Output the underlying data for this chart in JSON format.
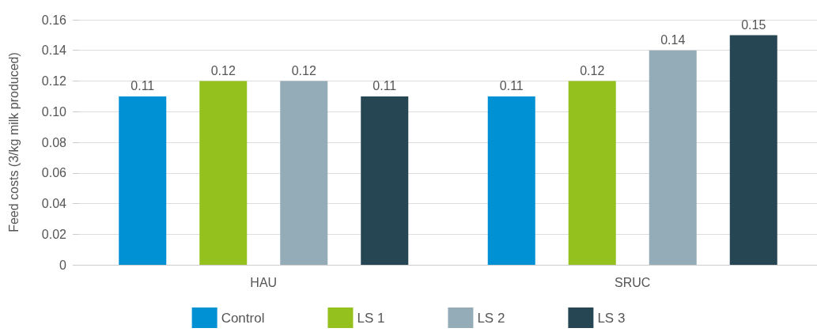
{
  "chart_data": {
    "type": "bar",
    "ylabel": "Feed costs (3/kg milk produced)",
    "categories": [
      "HAU",
      "SRUC"
    ],
    "series": [
      {
        "name": "Control",
        "color": "#0090d4",
        "values": [
          0.11,
          0.11
        ]
      },
      {
        "name": "LS 1",
        "color": "#95c11f",
        "values": [
          0.12,
          0.12
        ]
      },
      {
        "name": "LS 2",
        "color": "#94acb8",
        "values": [
          0.12,
          0.14
        ]
      },
      {
        "name": "LS 3",
        "color": "#264653",
        "values": [
          0.11,
          0.15
        ]
      }
    ],
    "ylim": [
      0,
      0.16
    ],
    "yticks": [
      0,
      0.02,
      0.04,
      0.06,
      0.08,
      {
        "value": 0.1,
        "label": "0.10"
      },
      0.12,
      0.14,
      0.16
    ],
    "grid": "y",
    "legend": "bottom",
    "data_labels": true
  }
}
